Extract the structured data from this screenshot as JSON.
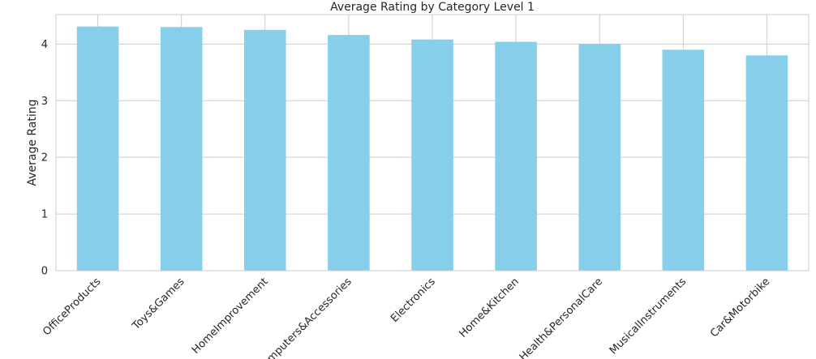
{
  "chart_data": {
    "type": "bar",
    "title": "Average Rating by Category Level 1",
    "xlabel": "",
    "ylabel": "Average Rating",
    "categories": [
      "OfficeProducts",
      "Toys&Games",
      "HomeImprovement",
      "Computers&Accessories",
      "Electronics",
      "Home&Kitchen",
      "Health&PersonalCare",
      "MusicalInstruments",
      "Car&Motorbike"
    ],
    "values": [
      4.31,
      4.3,
      4.25,
      4.16,
      4.08,
      4.04,
      4.0,
      3.9,
      3.8
    ],
    "ylim": [
      0,
      4.52
    ],
    "yticks": [
      0,
      1,
      2,
      3,
      4
    ],
    "grid": true,
    "bar_color": "#87CEEB",
    "grid_color": "#cccccc",
    "axis_color": "#cccccc",
    "text_color": "#262626"
  }
}
